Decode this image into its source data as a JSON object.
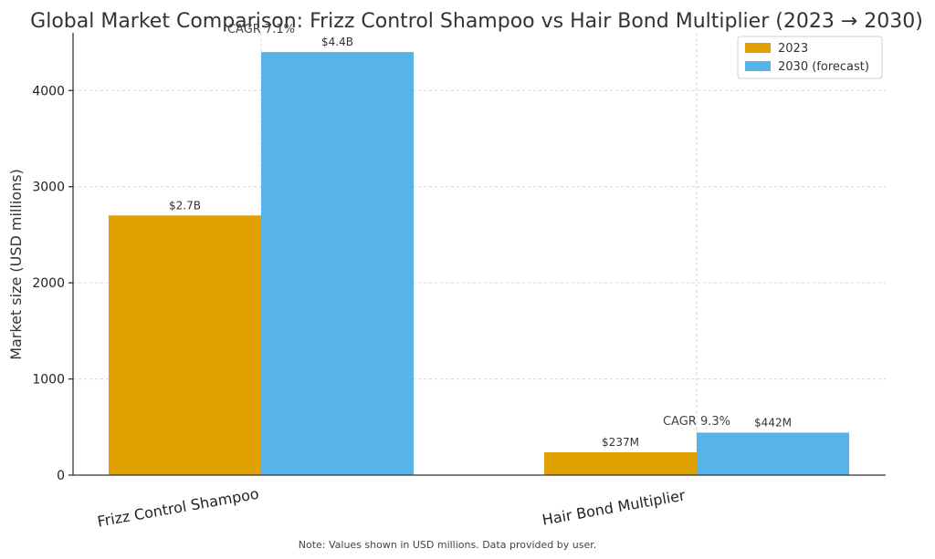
{
  "chart_data": {
    "type": "bar",
    "title": "Global Market Comparison: Frizz Control Shampoo vs Hair Bond Multiplier (2023 → 2030)",
    "ylabel": "Market size (USD millions)",
    "xlabel": "",
    "categories": [
      "Frizz Control Shampoo",
      "Hair Bond Multiplier"
    ],
    "series": [
      {
        "name": "2023",
        "color": "#E0A000",
        "values": [
          2700,
          237
        ],
        "labels": [
          "$2.7B",
          "$237M"
        ]
      },
      {
        "name": "2030 (forecast)",
        "color": "#56B4E9",
        "values": [
          4400,
          442
        ],
        "labels": [
          "$4.4B",
          "$442M"
        ]
      }
    ],
    "cagr": [
      "CAGR 7.1%",
      "CAGR 9.3%"
    ],
    "ylim": [
      0,
      4600
    ],
    "yticks": [
      0,
      1000,
      2000,
      3000,
      4000
    ],
    "grid": true,
    "legend": "top-right",
    "note": "Note: Values shown in USD millions. Data provided by user."
  }
}
